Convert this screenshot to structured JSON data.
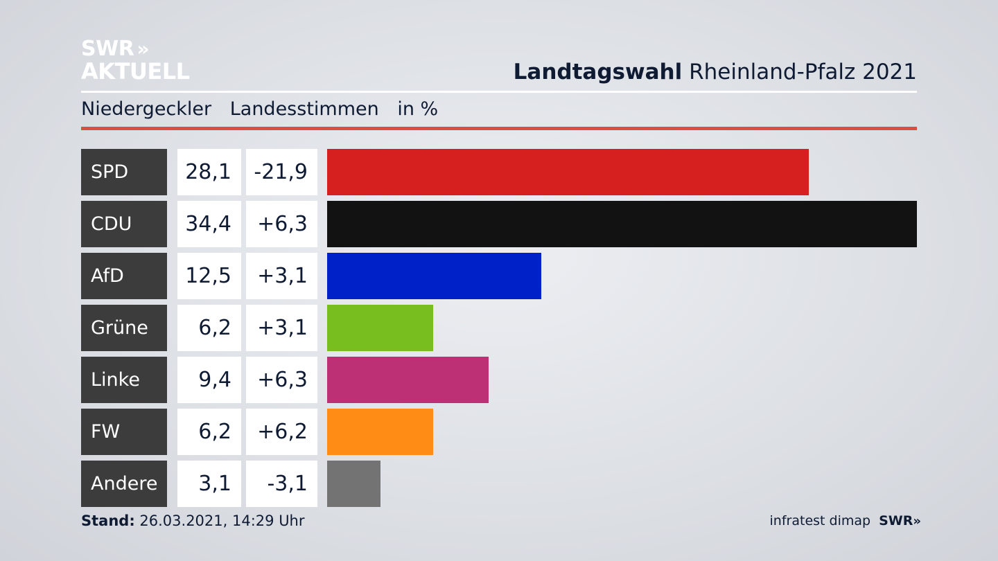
{
  "logo": {
    "line1": "SWR",
    "line2": "AKTUELL"
  },
  "header": {
    "title_bold": "Landtagswahl",
    "title_rest": "Rheinland-Pfalz 2021",
    "location": "Niedergeckler",
    "vote_type": "Landesstimmen",
    "unit": "in %"
  },
  "chart_data": {
    "type": "bar",
    "orientation": "horizontal",
    "categories": [
      "SPD",
      "CDU",
      "AfD",
      "Grüne",
      "Linke",
      "FW",
      "Andere"
    ],
    "values": [
      28.1,
      34.4,
      12.5,
      6.2,
      9.4,
      6.2,
      3.1
    ],
    "value_labels": [
      "28,1",
      "34,4",
      "12,5",
      "6,2",
      "9,4",
      "6,2",
      "3,1"
    ],
    "changes": [
      -21.9,
      6.3,
      3.1,
      3.1,
      6.3,
      6.2,
      -3.1
    ],
    "change_labels": [
      "-21,9",
      "+6,3",
      "+3,1",
      "+3,1",
      "+6,3",
      "+6,2",
      "-3,1"
    ],
    "colors": [
      "#d61f1f",
      "#121212",
      "#0021c8",
      "#78be1e",
      "#be3075",
      "#ff8c14",
      "#737373"
    ],
    "xlim": [
      0,
      34.4
    ]
  },
  "footer": {
    "stand_label": "Stand:",
    "stand_value": "26.03.2021, 14:29 Uhr",
    "source": "infratest dimap",
    "brand": "SWR"
  }
}
